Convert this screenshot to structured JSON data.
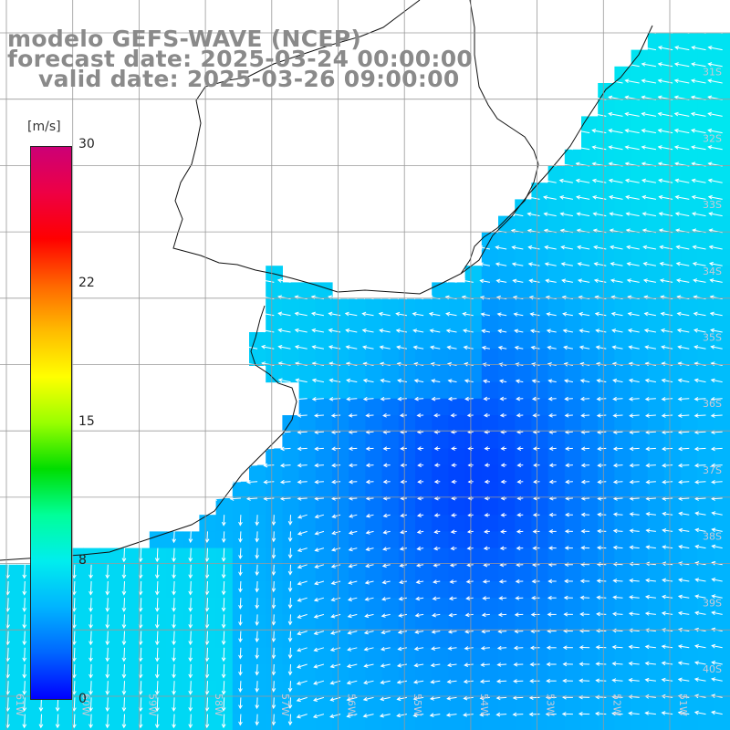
{
  "title": {
    "line1": "modelo GEFS-WAVE (NCEP)",
    "line2": "forecast date: 2025-03-24 00:00:00",
    "line3": "valid date: 2025-03-26 09:00:00"
  },
  "colorbar": {
    "unit": "[m/s]",
    "min": 0,
    "max": 30,
    "ticks": [
      "30",
      "22",
      "15",
      "8",
      "0"
    ],
    "tick_values": [
      30,
      22,
      15,
      8,
      0
    ],
    "colors": [
      "#0000ff",
      "#0066ff",
      "#00b4ff",
      "#00eeee",
      "#00ff99",
      "#00dd00",
      "#99ff00",
      "#ffff00",
      "#ffbb00",
      "#ff6600",
      "#ff0000",
      "#ee0044",
      "#cc0077"
    ]
  },
  "map": {
    "lon_range": [
      -62,
      -51
    ],
    "lat_range": [
      -41,
      -30
    ],
    "lat_labels": [
      "31S",
      "32S",
      "33S",
      "34S",
      "35S",
      "36S",
      "37S",
      "38S",
      "39S",
      "40S",
      "41S"
    ],
    "lon_labels": [
      "61W",
      "60W",
      "59W",
      "58W",
      "57W",
      "56W",
      "55W",
      "54W",
      "53W",
      "52W",
      "51W"
    ],
    "sea_color": "#0050f0",
    "land_color": "#ffffff",
    "grid_color": "#9a9a9a"
  }
}
